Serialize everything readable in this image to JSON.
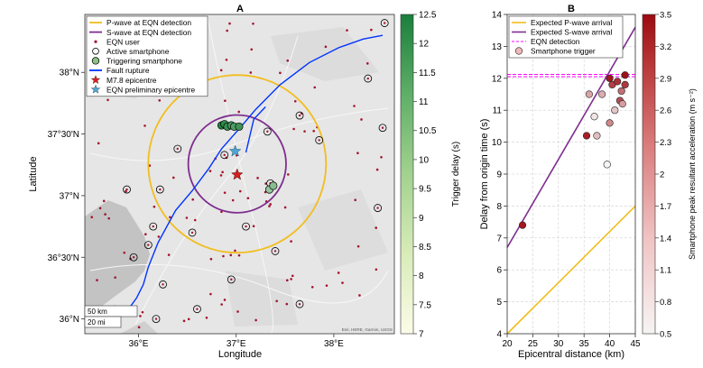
{
  "chart_data": [
    {
      "type": "map",
      "panel_label": "A",
      "xlabel": "Longitude",
      "ylabel": "Latitude",
      "x_ticks": [
        {
          "value": 36.0,
          "label": "36°E"
        },
        {
          "value": 37.0,
          "label": "37°E"
        },
        {
          "value": 38.0,
          "label": "38°E"
        }
      ],
      "y_ticks": [
        {
          "value": 36.0,
          "label": "36°N"
        },
        {
          "value": 36.5,
          "label": "36°30'N"
        },
        {
          "value": 37.0,
          "label": "37°N"
        },
        {
          "value": 37.5,
          "label": "37°30'N"
        },
        {
          "value": 38.0,
          "label": "38°N"
        }
      ],
      "xlim": [
        35.45,
        38.62
      ],
      "ylim": [
        35.88,
        38.47
      ],
      "scale_bar": [
        "50 km",
        "20 mi"
      ],
      "attribution": "Esri, HERE, Garmin, USGS",
      "legend": [
        {
          "label": "P-wave at EQN detection",
          "symbol": "line",
          "color": "#f2bd1d"
        },
        {
          "label": "S-wave at EQN detection",
          "symbol": "line",
          "color": "#7e2f8e"
        },
        {
          "label": "EQN user",
          "symbol": "dot",
          "color": "#a2142f"
        },
        {
          "label": "Active smartphone",
          "symbol": "open-circle",
          "color": "#000000"
        },
        {
          "label": "Triggering smartphone",
          "symbol": "filled-circle",
          "color": "#8cc084"
        },
        {
          "label": "Fault rupture",
          "symbol": "line",
          "color": "#0033ff"
        },
        {
          "label": "M7.8 epicentre",
          "symbol": "star",
          "color": "#d62020"
        },
        {
          "label": "EQN preliminary epicentre",
          "symbol": "star",
          "color": "#4da6d6"
        }
      ],
      "epicentre": {
        "lon": 37.01,
        "lat": 37.17
      },
      "preliminary_epicentre": {
        "lon": 36.99,
        "lat": 37.36
      },
      "p_wave_radius_km": 80,
      "s_wave_radius_km": 44,
      "fault_rupture": [
        [
          35.88,
          36.06
        ],
        [
          35.98,
          36.17
        ],
        [
          36.05,
          36.28
        ],
        [
          36.1,
          36.42
        ],
        [
          36.2,
          36.62
        ],
        [
          36.38,
          36.88
        ],
        [
          36.55,
          37.04
        ],
        [
          36.72,
          37.22
        ],
        [
          36.85,
          37.38
        ],
        [
          37.05,
          37.56
        ],
        [
          37.2,
          37.7
        ],
        [
          37.45,
          37.9
        ],
        [
          37.75,
          38.08
        ],
        [
          38.05,
          38.2
        ],
        [
          38.3,
          38.27
        ],
        [
          38.5,
          38.3
        ]
      ],
      "fault_branch": [
        [
          37.1,
          37.35
        ],
        [
          37.18,
          37.62
        ],
        [
          37.3,
          37.72
        ]
      ],
      "triggering_smartphones": [
        {
          "lon": 36.85,
          "lat": 37.57,
          "delay": 12.3
        },
        {
          "lon": 36.88,
          "lat": 37.58,
          "delay": 12.0
        },
        {
          "lon": 36.91,
          "lat": 37.56,
          "delay": 11.8
        },
        {
          "lon": 36.95,
          "lat": 37.57,
          "delay": 11.5
        },
        {
          "lon": 36.98,
          "lat": 37.56,
          "delay": 11.2
        },
        {
          "lon": 37.03,
          "lat": 37.56,
          "delay": 11.6
        },
        {
          "lon": 37.34,
          "lat": 37.05,
          "delay": 9.4
        },
        {
          "lon": 37.38,
          "lat": 37.08,
          "delay": 9.8
        }
      ],
      "active_smartphones": [
        [
          36.88,
          37.33
        ],
        [
          36.95,
          37.57
        ],
        [
          37.32,
          37.52
        ],
        [
          37.35,
          37.1
        ],
        [
          35.88,
          37.05
        ],
        [
          36.22,
          37.05
        ],
        [
          36.55,
          36.7
        ],
        [
          36.25,
          36.28
        ],
        [
          36.18,
          36.0
        ],
        [
          35.95,
          36.5
        ],
        [
          36.4,
          37.38
        ],
        [
          37.85,
          37.45
        ],
        [
          38.35,
          37.95
        ],
        [
          38.5,
          37.55
        ],
        [
          38.45,
          36.9
        ],
        [
          37.4,
          36.55
        ],
        [
          37.1,
          36.75
        ],
        [
          36.6,
          36.08
        ],
        [
          36.95,
          36.32
        ],
        [
          37.65,
          36.12
        ],
        [
          38.52,
          38.4
        ],
        [
          37.65,
          37.65
        ],
        [
          36.0,
          38.15
        ],
        [
          36.15,
          36.75
        ],
        [
          36.1,
          36.6
        ]
      ],
      "colorbar": {
        "label": "Trigger delay (s)",
        "min": 7,
        "max": 12.5,
        "ticks": [
          7,
          7.5,
          8,
          8.5,
          9,
          9.5,
          10,
          10.5,
          11,
          11.5,
          12,
          12.5
        ],
        "colors": [
          "#fcfce8",
          "#1a7f3c"
        ]
      }
    },
    {
      "type": "scatter",
      "panel_label": "B",
      "xlabel": "Epicentral distance (km)",
      "ylabel": "Delay from origin time (s)",
      "xlim": [
        20,
        45
      ],
      "ylim": [
        4,
        14
      ],
      "x_ticks": [
        20,
        25,
        30,
        35,
        40,
        45
      ],
      "y_ticks": [
        4,
        5,
        6,
        7,
        8,
        9,
        10,
        11,
        12,
        13,
        14
      ],
      "grid": true,
      "legend_position": "top-left",
      "series": [
        {
          "name": "Expected P-wave arrival",
          "kind": "line",
          "color": "#f2bd1d",
          "points": [
            [
              20,
              4.0
            ],
            [
              45,
              8.0
            ]
          ]
        },
        {
          "name": "Expected S-wave arrival",
          "kind": "line",
          "color": "#7e2f8e",
          "points": [
            [
              20,
              6.7
            ],
            [
              45,
              13.6
            ]
          ]
        },
        {
          "name": "EQN detection",
          "kind": "hline",
          "color": "#ff00ff",
          "values": [
            12.05,
            12.12
          ]
        },
        {
          "name": "Smartphone trigger",
          "kind": "scatter",
          "color": "#f0b8b8",
          "points": [
            {
              "x": 23.0,
              "y": 7.4,
              "acc": 3.3
            },
            {
              "x": 35.5,
              "y": 10.2,
              "acc": 3.2
            },
            {
              "x": 36.0,
              "y": 11.5,
              "acc": 1.5
            },
            {
              "x": 37.0,
              "y": 10.8,
              "acc": 0.7
            },
            {
              "x": 37.5,
              "y": 10.2,
              "acc": 1.2
            },
            {
              "x": 38.5,
              "y": 11.5,
              "acc": 1.4
            },
            {
              "x": 39.5,
              "y": 9.3,
              "acc": 0.5
            },
            {
              "x": 40.0,
              "y": 12.0,
              "acc": 3.3
            },
            {
              "x": 40.0,
              "y": 10.6,
              "acc": 1.9
            },
            {
              "x": 40.5,
              "y": 11.8,
              "acc": 2.8
            },
            {
              "x": 41.0,
              "y": 11.0,
              "acc": 1.1
            },
            {
              "x": 41.5,
              "y": 11.9,
              "acc": 3.0
            },
            {
              "x": 42.0,
              "y": 11.3,
              "acc": 2.6
            },
            {
              "x": 42.3,
              "y": 11.6,
              "acc": 2.2
            },
            {
              "x": 42.5,
              "y": 11.2,
              "acc": 1.6
            },
            {
              "x": 43.0,
              "y": 11.8,
              "acc": 2.9
            },
            {
              "x": 43.0,
              "y": 12.1,
              "acc": 3.4
            }
          ]
        }
      ],
      "colorbar": {
        "label": "Smartphone peak resultant acceleration (m s⁻²)",
        "min": 0.5,
        "max": 3.5,
        "ticks": [
          0.5,
          0.8,
          1.1,
          1.4,
          1.7,
          2,
          2.3,
          2.6,
          2.9,
          3.2,
          3.5
        ],
        "colors": [
          "#f7f4f4",
          "#9c0a10"
        ]
      }
    }
  ]
}
